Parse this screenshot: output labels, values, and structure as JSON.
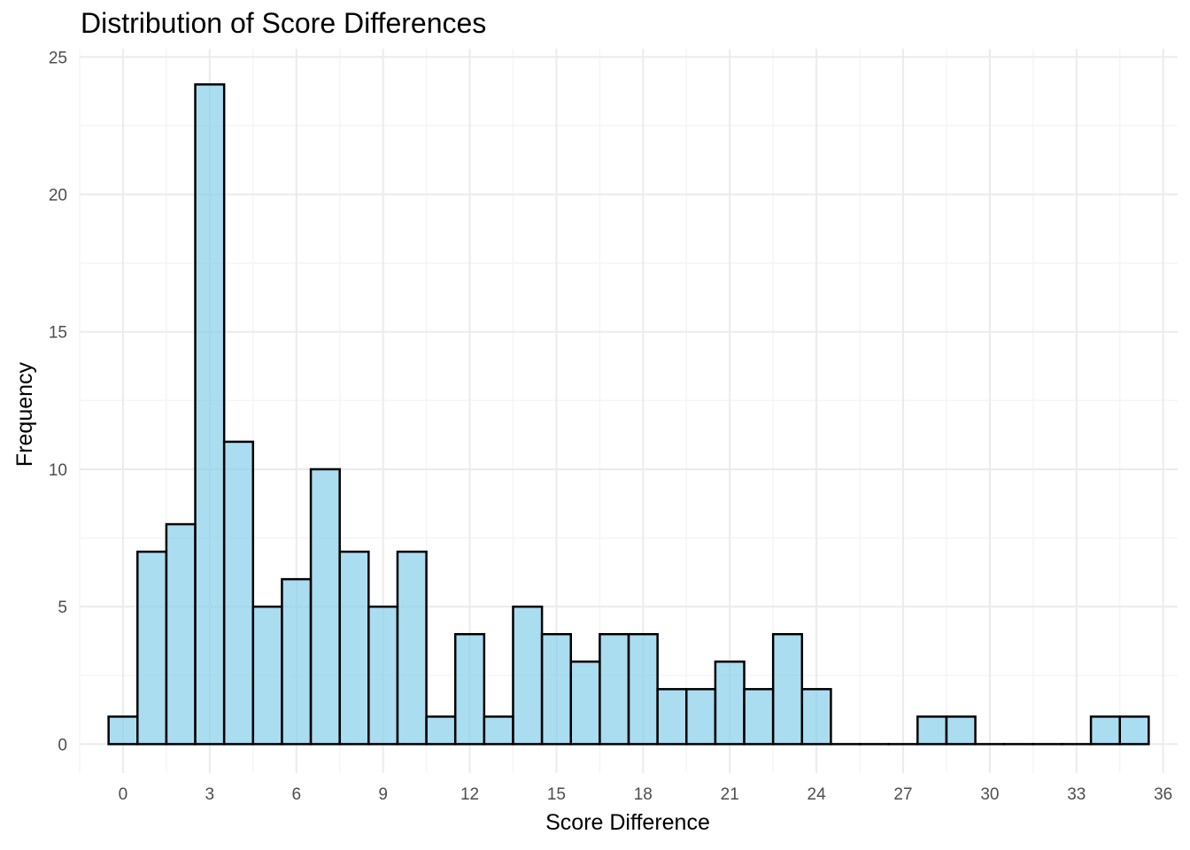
{
  "chart_data": {
    "type": "bar",
    "title": "Distribution of Score Differences",
    "xlabel": "Score Difference",
    "ylabel": "Frequency",
    "bin_width": 1,
    "bins": [
      {
        "x": 0,
        "count": 1
      },
      {
        "x": 1,
        "count": 7
      },
      {
        "x": 2,
        "count": 8
      },
      {
        "x": 3,
        "count": 24
      },
      {
        "x": 4,
        "count": 11
      },
      {
        "x": 5,
        "count": 5
      },
      {
        "x": 6,
        "count": 6
      },
      {
        "x": 7,
        "count": 10
      },
      {
        "x": 8,
        "count": 7
      },
      {
        "x": 9,
        "count": 5
      },
      {
        "x": 10,
        "count": 7
      },
      {
        "x": 11,
        "count": 1
      },
      {
        "x": 12,
        "count": 4
      },
      {
        "x": 13,
        "count": 1
      },
      {
        "x": 14,
        "count": 5
      },
      {
        "x": 15,
        "count": 4
      },
      {
        "x": 16,
        "count": 3
      },
      {
        "x": 17,
        "count": 4
      },
      {
        "x": 18,
        "count": 4
      },
      {
        "x": 19,
        "count": 2
      },
      {
        "x": 20,
        "count": 2
      },
      {
        "x": 21,
        "count": 3
      },
      {
        "x": 22,
        "count": 2
      },
      {
        "x": 23,
        "count": 4
      },
      {
        "x": 24,
        "count": 2
      },
      {
        "x": 25,
        "count": 0
      },
      {
        "x": 26,
        "count": 0
      },
      {
        "x": 27,
        "count": 0
      },
      {
        "x": 28,
        "count": 1
      },
      {
        "x": 29,
        "count": 1
      },
      {
        "x": 30,
        "count": 0
      },
      {
        "x": 31,
        "count": 0
      },
      {
        "x": 32,
        "count": 0
      },
      {
        "x": 33,
        "count": 0
      },
      {
        "x": 34,
        "count": 1
      },
      {
        "x": 35,
        "count": 1
      }
    ],
    "xticks": [
      0,
      3,
      6,
      9,
      12,
      15,
      18,
      21,
      24,
      27,
      30,
      33,
      36
    ],
    "yticks": [
      0,
      5,
      10,
      15,
      20,
      25
    ],
    "xlim": [
      -1.5,
      36.5
    ],
    "ylim": [
      -1.05,
      25.3
    ],
    "grid": true,
    "legend": "none",
    "colors": {
      "bar_fill": "#87CEEB",
      "bar_fill_opacity": 0.7,
      "bar_outline": "#000000",
      "grid_major": "#ebebeb",
      "grid_minor": "#f5f5f5"
    }
  }
}
